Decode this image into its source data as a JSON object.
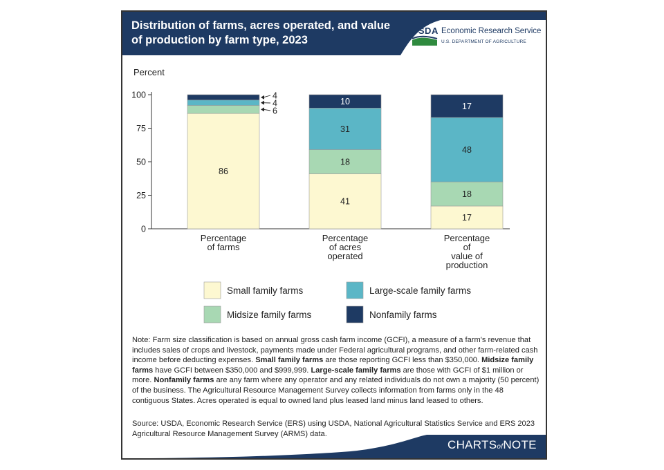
{
  "header": {
    "title": "Distribution of farms, acres operated, and value of production by farm type, 2023",
    "logo_text": "USDA",
    "agency": "Economic Research Service",
    "department": "U.S. DEPARTMENT OF AGRICULTURE"
  },
  "chart_data": {
    "type": "bar",
    "stacked": true,
    "ylabel": "Percent",
    "ylim": [
      0,
      100
    ],
    "yticks": [
      0,
      25,
      50,
      75,
      100
    ],
    "categories": [
      [
        "Percentage",
        "of farms"
      ],
      [
        "Percentage",
        "of acres",
        "operated"
      ],
      [
        "Percentage",
        "of",
        "value of",
        "production"
      ]
    ],
    "series": [
      {
        "name": "Small family farms",
        "color": "#fdf8d1",
        "values": [
          86,
          41,
          17
        ]
      },
      {
        "name": "Midsize family farms",
        "color": "#a8d8b3",
        "values": [
          6,
          18,
          18
        ]
      },
      {
        "name": "Large-scale family farms",
        "color": "#5bb6c6",
        "values": [
          4,
          31,
          48
        ]
      },
      {
        "name": "Nonfamily farms",
        "color": "#1e3a63",
        "values": [
          4,
          10,
          17
        ]
      }
    ],
    "legend_position": "bottom"
  },
  "note": {
    "prefix": "Note: Farm size classification is based on annual gross cash farm income (GCFI), a measure of a farm's revenue that includes sales of crops and livestock, payments made under Federal agricultural programs, and other farm-related cash income before deducting expenses. ",
    "small_term": "Small family farms",
    "small_def": " are those reporting GCFI less than $350,000. ",
    "mid_term": "Midsize family farms",
    "mid_def": " have GCFI between $350,000 and $999,999. ",
    "large_term": "Large-scale family farms",
    "large_def": " are those with GCFI of $1 million or more. ",
    "non_term": "Nonfamily farms",
    "non_def": " are any farm where any operator and any related individuals do not own a majority (50 percent) of the business. The Agricultural Resource Management Survey collects information from farms only in the 48 contiguous States. Acres operated is equal to owned land plus leased land minus land leased to others."
  },
  "source": "Source: USDA, Economic Research Service (ERS) using USDA, National Agricultural Statistics Service and ERS 2023 Agricultural Resource Management Survey (ARMS) data.",
  "footer": {
    "brand_left": "CHARTS",
    "brand_mid": "of",
    "brand_right": "NOTE"
  },
  "colors": {
    "navy": "#1e3a63",
    "usda_green": "#2f8a3e"
  }
}
